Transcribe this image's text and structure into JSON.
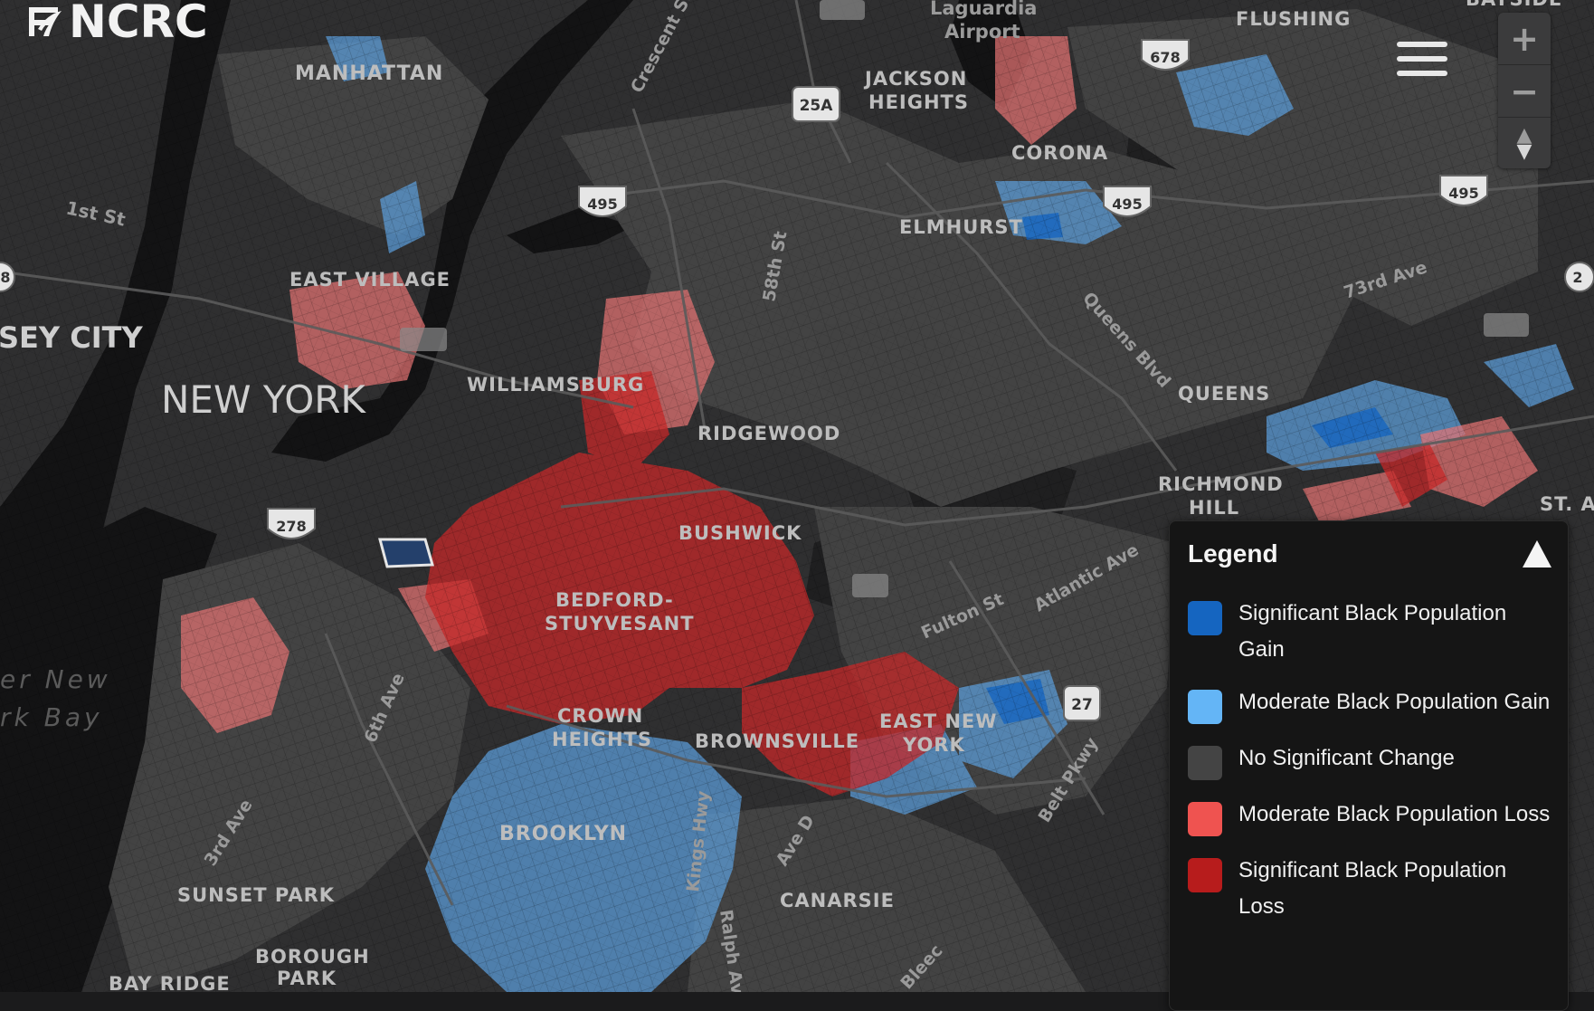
{
  "app": {
    "logo_text": "NCRC"
  },
  "colors": {
    "background": "#1b1b1c",
    "sig_gain": "#1565c0",
    "mod_gain": "#64b5f6",
    "no_change": "#444444",
    "mod_loss": "#ef5350",
    "sig_loss": "#b71c1c"
  },
  "controls": {
    "menu_icon": "hamburger-menu-icon",
    "zoom_in": "+",
    "zoom_out": "−",
    "reset_bearing_icon": "compass-icon"
  },
  "legend": {
    "title": "Legend",
    "toggle_icon": "collapse-triangle-icon",
    "items": [
      {
        "label": "Significant Black Population Gain",
        "color": "#1565c0"
      },
      {
        "label": "Moderate Black Population Gain",
        "color": "#64b5f6"
      },
      {
        "label": "No Significant Change",
        "color": "#444444"
      },
      {
        "label": "Moderate Black Population Loss",
        "color": "#ef5350"
      },
      {
        "label": "Significant Black Population Loss",
        "color": "#b71c1c"
      }
    ]
  },
  "map": {
    "places": {
      "manhattan": "MANHATTAN",
      "east_village": "EAST VILLAGE",
      "jersey_city": "SEY CITY",
      "new_york": "NEW YORK",
      "williamsburg": "WILLIAMSBURG",
      "ridgewood": "RIDGEWOOD",
      "bushwick": "BUSHWICK",
      "bed_stuy_1": "BEDFORD-",
      "bed_stuy_2": "STUYVESANT",
      "crown_1": "CROWN",
      "crown_2": "HEIGHTS",
      "brownsville": "BROWNSVILLE",
      "eny_1": "EAST NEW",
      "eny_2": "YORK",
      "brooklyn": "BROOKLYN",
      "canarsie": "CANARSIE",
      "sunset_park": "SUNSET PARK",
      "borough_1": "BOROUGH",
      "borough_2": "PARK",
      "bay_ridge": "BAY RIDGE",
      "jackson_1": "JACKSON",
      "jackson_2": "HEIGHTS",
      "corona": "CORONA",
      "elmhurst": "ELMHURST",
      "flushing": "FLUSHING",
      "queens": "QUEENS",
      "richmond_1": "RICHMOND",
      "richmond_2": "HILL",
      "st_a": "ST. A",
      "bayside": "BAYSIDE",
      "laguardia_1": "Laguardia",
      "laguardia_2": "Airport"
    },
    "streets": {
      "first_st": "1st St",
      "crescent": "Crescent St",
      "fifty_eighth": "58th St",
      "queens_blvd": "Queens Blvd",
      "seventy_third": "73rd Ave",
      "fulton": "Fulton St",
      "atlantic": "Atlantic Ave",
      "sixth_ave": "6th Ave",
      "third_ave": "3rd Ave",
      "kings_hwy": "Kings Hwy",
      "ave_d": "Ave D",
      "belt_pkwy": "Belt Pkwy",
      "ralph_ave": "Ralph Ave",
      "bleecker": "Bleec"
    },
    "water": {
      "upper_1": "er New",
      "upper_2": "rk Bay"
    },
    "shields": {
      "i495_a": "495",
      "i495_b": "495",
      "i495_c": "495",
      "i678": "678",
      "i278": "278",
      "ny25a": "25A",
      "ny27": "27",
      "edge_left": "8",
      "edge_right": "2"
    }
  }
}
